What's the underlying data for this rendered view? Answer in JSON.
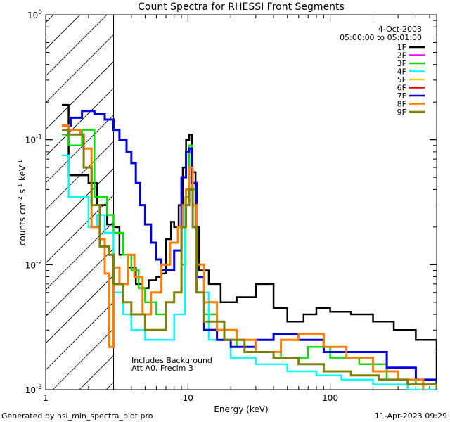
{
  "chart_data": {
    "type": "line",
    "title": "Count Spectra for RHESSI Front Segments",
    "xlabel": "Energy (keV)",
    "ylabel_parts": {
      "base": "counts cm",
      "exp1": "-2",
      "mid": " s",
      "exp2": "-1",
      "end": " keV",
      "exp3": "-1"
    },
    "x_scale": "log",
    "y_scale": "log",
    "xlim": [
      1,
      560
    ],
    "ylim": [
      0.001,
      1
    ],
    "x_ticks": [
      {
        "v": 1,
        "label": "1"
      },
      {
        "v": 10,
        "label": "10"
      },
      {
        "v": 100,
        "label": "100"
      }
    ],
    "y_ticks": [
      {
        "v": 1,
        "base": "10",
        "exp": "0"
      },
      {
        "v": 0.1,
        "base": "10",
        "exp": "-1"
      },
      {
        "v": 0.01,
        "base": "10",
        "exp": "-2"
      },
      {
        "v": 0.001,
        "base": "10",
        "exp": "-3"
      }
    ],
    "hatched_region_x": [
      1,
      3
    ],
    "date": "4-Oct-2003",
    "time_range": "05:00:00 to 05:01:00",
    "annotation_lines": [
      "Includes Background",
      "Att A0, Frecim 3"
    ],
    "footer_left": "Generated by hsi_min_spectra_plot.pro",
    "footer_right": "11-Apr-2023 09:29",
    "series": [
      {
        "name": "1F",
        "color": "#000000",
        "width": 2.5,
        "points": [
          [
            1.3,
            0.19
          ],
          [
            1.45,
            0.052
          ],
          [
            1.8,
            0.052
          ],
          [
            2.0,
            0.045
          ],
          [
            2.3,
            0.03
          ],
          [
            2.7,
            0.021
          ],
          [
            3.0,
            0.02
          ],
          [
            3.3,
            0.012
          ],
          [
            3.8,
            0.0095
          ],
          [
            4.3,
            0.007
          ],
          [
            4.8,
            0.0065
          ],
          [
            5.3,
            0.0075
          ],
          [
            6.0,
            0.008
          ],
          [
            6.5,
            0.0085
          ],
          [
            7.0,
            0.016
          ],
          [
            7.6,
            0.022
          ],
          [
            8.0,
            0.02
          ],
          [
            8.6,
            0.03
          ],
          [
            9.2,
            0.06
          ],
          [
            9.7,
            0.1
          ],
          [
            10.2,
            0.11
          ],
          [
            10.7,
            0.055
          ],
          [
            11.3,
            0.02
          ],
          [
            12.0,
            0.009
          ],
          [
            14.0,
            0.007
          ],
          [
            17.0,
            0.005
          ],
          [
            22.0,
            0.0055
          ],
          [
            30.0,
            0.007
          ],
          [
            40.0,
            0.0045
          ],
          [
            50.0,
            0.0035
          ],
          [
            65.0,
            0.004
          ],
          [
            80.0,
            0.0045
          ],
          [
            100.0,
            0.0042
          ],
          [
            140.0,
            0.004
          ],
          [
            200.0,
            0.0035
          ],
          [
            280.0,
            0.003
          ],
          [
            400.0,
            0.0025
          ],
          [
            560.0,
            0.0012
          ]
        ]
      },
      {
        "name": "2F",
        "color": "#ff00ff",
        "width": 2,
        "points": []
      },
      {
        "name": "3F",
        "color": "#00dd00",
        "width": 2.5,
        "points": [
          [
            1.3,
            0.11
          ],
          [
            1.45,
            0.09
          ],
          [
            1.8,
            0.12
          ],
          [
            2.2,
            0.035
          ],
          [
            2.7,
            0.025
          ],
          [
            3.0,
            0.018
          ],
          [
            3.5,
            0.012
          ],
          [
            4.0,
            0.009
          ],
          [
            4.5,
            0.0065
          ],
          [
            5.0,
            0.005
          ],
          [
            6.0,
            0.004
          ],
          [
            7.0,
            0.005
          ],
          [
            8.0,
            0.006
          ],
          [
            9.0,
            0.01
          ],
          [
            9.6,
            0.035
          ],
          [
            10.2,
            0.09
          ],
          [
            10.7,
            0.04
          ],
          [
            11.5,
            0.01
          ],
          [
            13.0,
            0.004
          ],
          [
            16.0,
            0.003
          ],
          [
            22.0,
            0.0022
          ],
          [
            30.0,
            0.002
          ],
          [
            45.0,
            0.0018
          ],
          [
            70.0,
            0.0022
          ],
          [
            100.0,
            0.0018
          ],
          [
            160.0,
            0.0016
          ],
          [
            250.0,
            0.0012
          ],
          [
            400.0,
            0.0011
          ],
          [
            560.0,
            0.001
          ]
        ]
      },
      {
        "name": "4F",
        "color": "#00ffff",
        "width": 2.5,
        "points": [
          [
            1.3,
            0.075
          ],
          [
            1.45,
            0.035
          ],
          [
            1.75,
            0.035
          ],
          [
            2.0,
            0.02
          ],
          [
            2.3,
            0.025
          ],
          [
            2.6,
            0.018
          ],
          [
            3.0,
            0.006
          ],
          [
            3.5,
            0.004
          ],
          [
            4.0,
            0.003
          ],
          [
            5.0,
            0.0025
          ],
          [
            6.0,
            0.0025
          ],
          [
            8.0,
            0.004
          ],
          [
            9.5,
            0.03
          ],
          [
            10.2,
            0.05
          ],
          [
            10.8,
            0.03
          ],
          [
            11.5,
            0.006
          ],
          [
            14.0,
            0.0025
          ],
          [
            20.0,
            0.0018
          ],
          [
            30.0,
            0.0016
          ],
          [
            50.0,
            0.0014
          ],
          [
            80.0,
            0.0013
          ],
          [
            120.0,
            0.0012
          ],
          [
            200.0,
            0.0011
          ],
          [
            350.0,
            0.001
          ],
          [
            560.0,
            0.001
          ]
        ]
      },
      {
        "name": "5F",
        "color": "#ffcc00",
        "width": 2,
        "points": []
      },
      {
        "name": "6F",
        "color": "#dd0000",
        "width": 2,
        "points": []
      },
      {
        "name": "7F",
        "color": "#0000dd",
        "width": 3,
        "points": [
          [
            1.3,
            0.13
          ],
          [
            1.5,
            0.15
          ],
          [
            1.65,
            0.15
          ],
          [
            1.8,
            0.17
          ],
          [
            2.2,
            0.16
          ],
          [
            2.6,
            0.145
          ],
          [
            3.0,
            0.12
          ],
          [
            3.3,
            0.1
          ],
          [
            3.7,
            0.08
          ],
          [
            4.0,
            0.065
          ],
          [
            4.3,
            0.045
          ],
          [
            4.6,
            0.03
          ],
          [
            5.0,
            0.021
          ],
          [
            5.5,
            0.015
          ],
          [
            6.0,
            0.011
          ],
          [
            6.5,
            0.009
          ],
          [
            7.0,
            0.009
          ],
          [
            8.0,
            0.013
          ],
          [
            9.0,
            0.05
          ],
          [
            9.7,
            0.08
          ],
          [
            10.2,
            0.085
          ],
          [
            10.7,
            0.045
          ],
          [
            11.5,
            0.008
          ],
          [
            13.0,
            0.003
          ],
          [
            16.0,
            0.0025
          ],
          [
            20.0,
            0.0022
          ],
          [
            30.0,
            0.0025
          ],
          [
            40.0,
            0.0028
          ],
          [
            60.0,
            0.0025
          ],
          [
            90.0,
            0.002
          ],
          [
            140.0,
            0.002
          ],
          [
            250.0,
            0.0015
          ],
          [
            400.0,
            0.0012
          ],
          [
            560.0,
            0.001
          ]
        ]
      },
      {
        "name": "8F",
        "color": "#ff8000",
        "width": 3,
        "points": [
          [
            1.3,
            0.13
          ],
          [
            1.45,
            0.12
          ],
          [
            1.75,
            0.11
          ],
          [
            1.85,
            0.085
          ],
          [
            2.1,
            0.02
          ],
          [
            2.4,
            0.016
          ],
          [
            2.6,
            0.0085
          ],
          [
            2.8,
            0.0022
          ],
          [
            3.0,
            0.0095
          ],
          [
            3.3,
            0.007
          ],
          [
            3.8,
            0.012
          ],
          [
            4.2,
            0.008
          ],
          [
            4.8,
            0.004
          ],
          [
            5.5,
            0.006
          ],
          [
            6.5,
            0.01
          ],
          [
            7.5,
            0.015
          ],
          [
            8.5,
            0.02
          ],
          [
            9.2,
            0.03
          ],
          [
            9.7,
            0.04
          ],
          [
            10.2,
            0.06
          ],
          [
            10.8,
            0.03
          ],
          [
            11.5,
            0.01
          ],
          [
            13.0,
            0.005
          ],
          [
            16.0,
            0.003
          ],
          [
            22.0,
            0.0025
          ],
          [
            30.0,
            0.002
          ],
          [
            45.0,
            0.0025
          ],
          [
            60.0,
            0.0028
          ],
          [
            90.0,
            0.0022
          ],
          [
            130.0,
            0.0018
          ],
          [
            200.0,
            0.0014
          ],
          [
            300.0,
            0.0012
          ],
          [
            450.0,
            0.001
          ]
        ]
      },
      {
        "name": "9F",
        "color": "#808000",
        "width": 3,
        "points": [
          [
            1.3,
            0.12
          ],
          [
            1.45,
            0.11
          ],
          [
            1.75,
            0.11
          ],
          [
            1.85,
            0.06
          ],
          [
            2.1,
            0.03
          ],
          [
            2.4,
            0.014
          ],
          [
            2.8,
            0.012
          ],
          [
            3.0,
            0.007
          ],
          [
            3.5,
            0.005
          ],
          [
            4.0,
            0.004
          ],
          [
            5.0,
            0.003
          ],
          [
            6.0,
            0.003
          ],
          [
            7.0,
            0.005
          ],
          [
            8.0,
            0.006
          ],
          [
            9.0,
            0.02
          ],
          [
            9.7,
            0.03
          ],
          [
            10.2,
            0.04
          ],
          [
            10.8,
            0.02
          ],
          [
            11.5,
            0.006
          ],
          [
            13.0,
            0.0035
          ],
          [
            18.0,
            0.0025
          ],
          [
            25.0,
            0.002
          ],
          [
            40.0,
            0.0018
          ],
          [
            60.0,
            0.0016
          ],
          [
            90.0,
            0.0014
          ],
          [
            140.0,
            0.0013
          ],
          [
            220.0,
            0.0012
          ],
          [
            350.0,
            0.0011
          ],
          [
            560.0,
            0.001
          ]
        ]
      }
    ]
  }
}
